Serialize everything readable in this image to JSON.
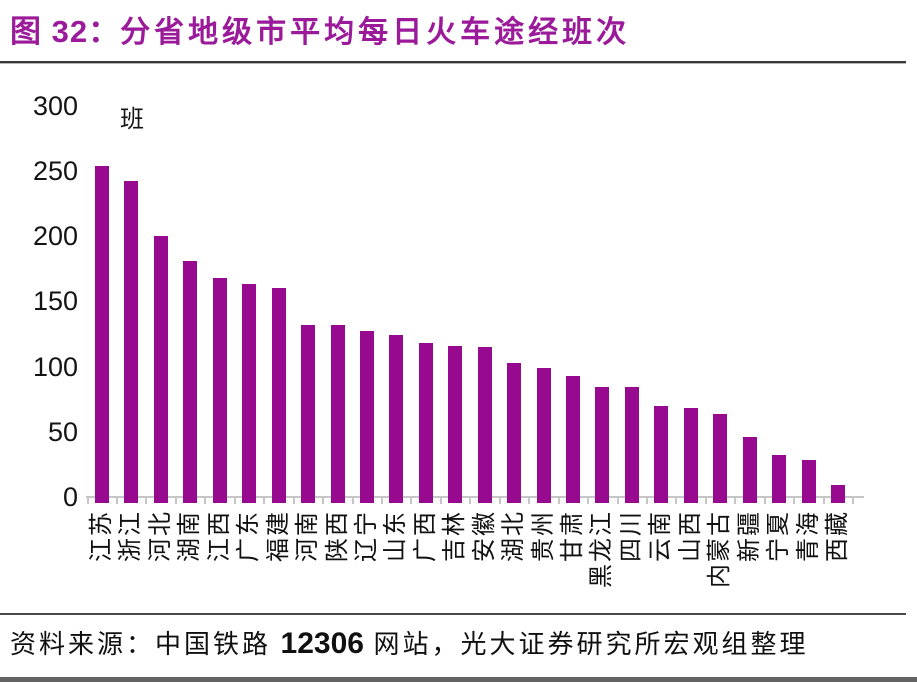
{
  "title": {
    "prefix": "图 32：",
    "main": "分省地级市平均每日火车途经班次"
  },
  "chart_data": {
    "type": "bar",
    "title": "分省地级市平均每日火车途经班次",
    "unit_label": "班",
    "xlabel": "",
    "ylabel": "班",
    "ylim": [
      0,
      300
    ],
    "yticks": [
      0,
      50,
      100,
      150,
      200,
      250,
      300
    ],
    "grid": false,
    "legend": "none",
    "bar_color": "#97098F",
    "categories": [
      "江苏",
      "浙江",
      "河北",
      "湖南",
      "江西",
      "广东",
      "福建",
      "河南",
      "陕西",
      "辽宁",
      "山东",
      "广西",
      "吉林",
      "安徽",
      "湖北",
      "贵州",
      "甘肃",
      "黑龙江",
      "四川",
      "云南",
      "山西",
      "内蒙古",
      "新疆",
      "宁夏",
      "青海",
      "西藏"
    ],
    "values": [
      254,
      242,
      200,
      181,
      168,
      163,
      160,
      132,
      132,
      127,
      124,
      118,
      116,
      115,
      103,
      99,
      93,
      84,
      84,
      70,
      68,
      64,
      46,
      32,
      28,
      9
    ]
  },
  "footer": {
    "source_prefix": "资料来源：中国铁路 ",
    "source_number": "12306",
    "source_suffix": " 网站，光大证券研究所宏观组整理"
  }
}
